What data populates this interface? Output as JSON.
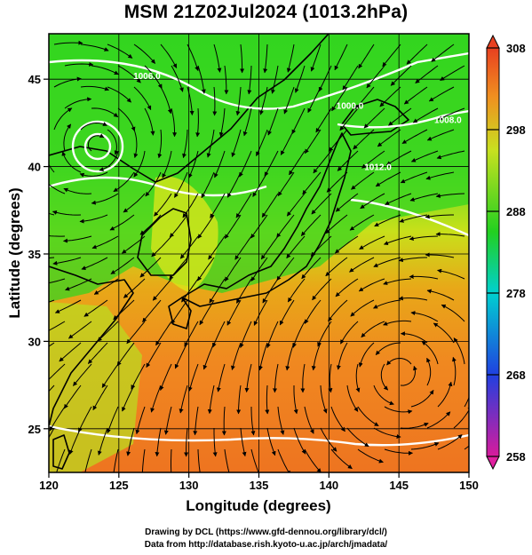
{
  "title": "MSM 21Z02Jul2024 (1013.2hPa)",
  "map": {
    "x_label": "Longitude (degrees)",
    "y_label": "Latitude  (degrees)",
    "x_range": [
      120,
      150
    ],
    "y_range": [
      22.5,
      47.6
    ],
    "x_ticks": [
      "120",
      "125",
      "130",
      "135",
      "140",
      "145",
      "150"
    ],
    "y_ticks": [
      "25",
      "30",
      "35",
      "40",
      "45"
    ],
    "isobar_labels": [
      {
        "text": "1006.0",
        "lon": 127.0,
        "lat": 45.0
      },
      {
        "text": "1000.0",
        "lon": 141.5,
        "lat": 43.3
      },
      {
        "text": "1008.0",
        "lon": 148.5,
        "lat": 42.5
      },
      {
        "text": "1012.0",
        "lon": 143.5,
        "lat": 39.8
      }
    ]
  },
  "colorbar": {
    "min": 258,
    "max": 308,
    "ticks": [
      "308",
      "298",
      "288",
      "278",
      "268",
      "258"
    ],
    "colors": [
      "#d81b9c",
      "#3050e0",
      "#00d0d0",
      "#22d020",
      "#c8e020",
      "#f09020",
      "#e84020"
    ]
  },
  "credits": {
    "line1": "Drawing by DCL (https://www.gfd-dennou.org/library/dcl/)",
    "line2": "Data from http://database.rish.kyoto-u.ac.jp/arch/jmadata/"
  }
}
